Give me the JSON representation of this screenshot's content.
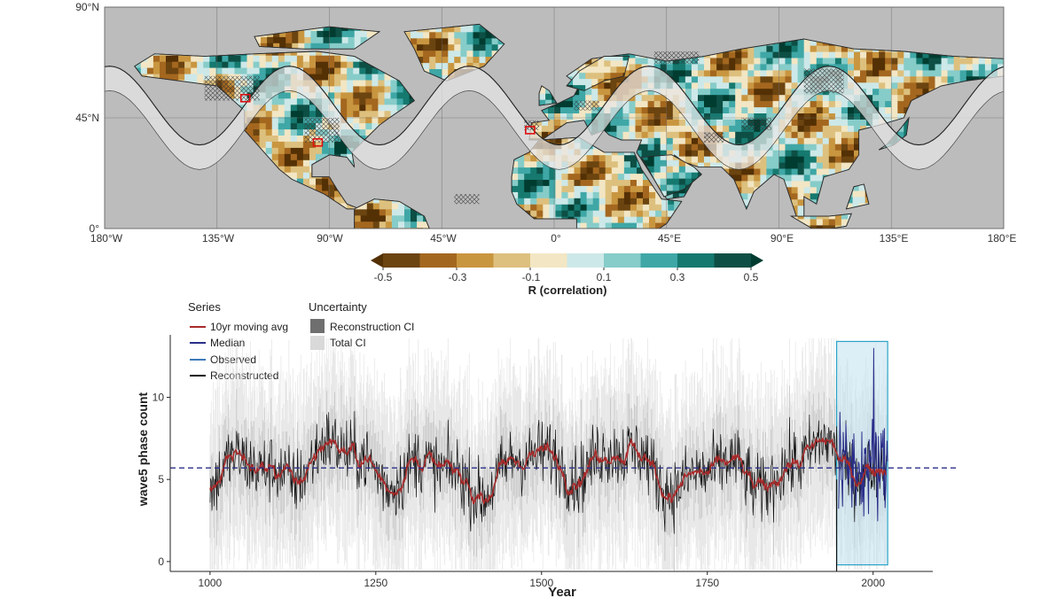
{
  "chart_data": [
    {
      "type": "heatmap",
      "name": "correlation-map",
      "lat_labels": [
        "90°N",
        "45°N",
        "0°"
      ],
      "lon_labels": [
        "180°W",
        "135°W",
        "90°W",
        "45°W",
        "0°",
        "45°E",
        "90°E",
        "135°E",
        "180°E"
      ],
      "lat_range": [
        0,
        90
      ],
      "lon_range": [
        -180,
        180
      ],
      "colorbar": {
        "title": "R (correlation)",
        "tick_labels": [
          "-0.5",
          "-0.3",
          "-0.1",
          "0.1",
          "0.3",
          "0.5"
        ],
        "ticks": [
          -0.5,
          -0.3,
          -0.1,
          0.1,
          0.3,
          0.5
        ],
        "bounds": [
          -0.5,
          -0.4,
          -0.3,
          -0.2,
          -0.1,
          0,
          0.1,
          0.2,
          0.3,
          0.4,
          0.5
        ],
        "colors": [
          "#6b4410",
          "#a4671f",
          "#c99640",
          "#ddc07e",
          "#f2e6c4",
          "#cde8e8",
          "#86ccc9",
          "#3fa7a6",
          "#16796f",
          "#0d4f45"
        ],
        "extend_low_color": "#543005",
        "extend_high_color": "#003c30"
      },
      "wave": {
        "wavenumber": 5,
        "center_lat": 45,
        "amplitude_deg": 16,
        "band_half_width_deg": 5
      }
    },
    {
      "type": "line",
      "name": "wave5-phase-count",
      "xlabel": "Year",
      "ylabel": "wave5 phase count",
      "xlim": [
        940,
        2090
      ],
      "ylim": [
        -0.6,
        13.8
      ],
      "x_ticks": [
        1000,
        1250,
        1500,
        1750,
        2000
      ],
      "x_tick_labels": [
        "1000",
        "1250",
        "1500",
        "1750",
        "2000"
      ],
      "y_ticks": [
        0,
        5,
        10
      ],
      "y_tick_labels": [
        "0",
        "5",
        "10"
      ],
      "median_value": 5.7,
      "reconstructed_range": [
        1000,
        2020
      ],
      "observed_range": [
        1948,
        2022
      ],
      "highlight_range": [
        1945,
        2022
      ],
      "legend": {
        "series_title": "Series",
        "series": [
          {
            "label": "10yr moving avg",
            "color": "#a82a2a"
          },
          {
            "label": "Median",
            "color": "#2b2f8a"
          },
          {
            "label": "Observed",
            "color": "#3c7ab8"
          },
          {
            "label": "Reconstructed",
            "color": "#111111"
          }
        ],
        "uncertainty_title": "Uncertainty",
        "uncertainty": [
          {
            "label": "Reconstruction CI",
            "color": "#6f6f6f"
          },
          {
            "label": "Total CI",
            "color": "#d9d9d9"
          }
        ]
      }
    }
  ]
}
